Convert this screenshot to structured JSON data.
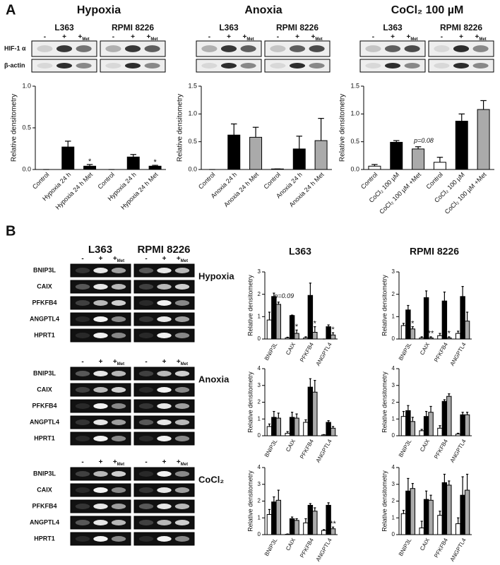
{
  "panel_labels": [
    "A",
    "B"
  ],
  "blot_a": {
    "titles": [
      "Hypoxia",
      "Anoxia",
      "CoCl₂ 100 µM"
    ],
    "cell_lines": [
      "L363",
      "RPMI 8226"
    ],
    "lanes": [
      "-",
      "+",
      "+"
    ],
    "lane_sub": "Met",
    "rows": [
      "HIF-1 α",
      "β-actin"
    ]
  },
  "blot_b": {
    "cell_lines": [
      "L363",
      "RPMI 8226"
    ],
    "lanes": [
      "-",
      "+",
      "+"
    ],
    "lane_sub": "Met",
    "genes": [
      "BNIP3L",
      "CAIX",
      "PFKFB4",
      "ANGPTL4",
      "HPRT1"
    ],
    "conditions": [
      "Hypoxia",
      "Anoxia",
      "CoCl₂"
    ]
  },
  "chart_data": [
    {
      "type": "bar",
      "ylabel": "Relative densitometry",
      "categories": [
        "Control",
        "Hypoxia 24 h",
        "Hypoxia 24 h Met",
        "Control",
        "Hypoxia 24 h",
        "Hypoxia 24 h Met"
      ],
      "values": [
        0,
        0.27,
        0.04,
        0,
        0.15,
        0.04
      ],
      "errors": [
        0,
        0.07,
        0.02,
        0,
        0.03,
        0.01
      ],
      "colors": [
        "#000000",
        "#000000",
        "#000000",
        "#000000",
        "#000000",
        "#000000"
      ],
      "annotations": [
        null,
        null,
        "*",
        null,
        null,
        "*"
      ],
      "ylim": [
        0,
        1.0
      ],
      "yticks": [
        {
          "value": 0,
          "label": "0.0"
        },
        {
          "value": 0.5,
          "label": "0.5"
        },
        {
          "value": 1.0,
          "label": "1.0"
        }
      ]
    },
    {
      "type": "bar",
      "ylabel": "Relative densitometry",
      "categories": [
        "Control",
        "Anoxia 24 h",
        "Anoxia 24 h Met",
        "Control",
        "Anoxia 24 h",
        "Anoxia 24 h Met"
      ],
      "values": [
        0,
        0.62,
        0.58,
        0.01,
        0.37,
        0.52
      ],
      "errors": [
        0,
        0.2,
        0.18,
        0,
        0.23,
        0.4
      ],
      "colors": [
        "#000000",
        "#000000",
        "#aaaaaa",
        "#000000",
        "#000000",
        "#aaaaaa"
      ],
      "ylim": [
        0,
        1.5
      ],
      "yticks": [
        {
          "value": 0,
          "label": "0.0"
        },
        {
          "value": 0.5,
          "label": "0.5"
        },
        {
          "value": 1.0,
          "label": "1.0"
        },
        {
          "value": 1.5,
          "label": "1.5"
        }
      ]
    },
    {
      "type": "bar",
      "ylabel": "Relative densitometry",
      "categories": [
        "Control",
        "CoCl₂ 100 µM",
        "CoCl₂ 100 µM +Met",
        "Control",
        "CoCl₂ 100 µM",
        "CoCl₂ 100 µM +Met"
      ],
      "values": [
        0.06,
        0.49,
        0.37,
        0.13,
        0.87,
        1.08
      ],
      "errors": [
        0.03,
        0.03,
        0.04,
        0.09,
        0.13,
        0.16
      ],
      "colors": [
        "#ffffff",
        "#000000",
        "#aaaaaa",
        "#ffffff",
        "#000000",
        "#aaaaaa"
      ],
      "annotations": [
        null,
        null,
        "p=0.08",
        null,
        null,
        null
      ],
      "ylim": [
        0,
        1.5
      ],
      "yticks": [
        {
          "value": 0,
          "label": "0.0"
        },
        {
          "value": 0.5,
          "label": "0.5"
        },
        {
          "value": 1.0,
          "label": "1.0"
        },
        {
          "value": 1.5,
          "label": "1.5"
        }
      ]
    },
    {
      "type": "grouped_bar",
      "ylabel": "Relative densitometry",
      "categories": [
        "BNIP3L",
        "CAIX",
        "PFKFB4",
        "ANGPTL4"
      ],
      "series": [
        {
          "color": "#ffffff",
          "values": [
            0.85,
            0.05,
            0.05,
            0
          ],
          "errors": [
            0.35,
            0.03,
            0.05,
            0
          ]
        },
        {
          "color": "#000000",
          "values": [
            1.9,
            1.05,
            1.95,
            0.55
          ],
          "errors": [
            0.15,
            0.02,
            0.55,
            0.08
          ]
        },
        {
          "color": "#aaaaaa",
          "values": [
            1.55,
            0.25,
            0.3,
            0.18
          ],
          "errors": [
            0.1,
            0.15,
            0.25,
            0.1
          ],
          "annotations": [
            "p=0.09",
            "*",
            "*",
            "*"
          ]
        }
      ],
      "ylim": [
        0,
        3
      ],
      "yticks": [
        0,
        1,
        2,
        3
      ]
    },
    {
      "type": "grouped_bar",
      "ylabel": "Relative densitometry",
      "categories": [
        "BNIP3L",
        "CAIX",
        "PFKFB4",
        "ANGPTL4"
      ],
      "series": [
        {
          "color": "#ffffff",
          "values": [
            0.6,
            0.05,
            0.15,
            0.25
          ],
          "errors": [
            0.1,
            0.05,
            0.1,
            0.1
          ]
        },
        {
          "color": "#000000",
          "values": [
            1.3,
            1.85,
            1.7,
            1.9
          ],
          "errors": [
            0.2,
            0.3,
            0.4,
            0.45
          ]
        },
        {
          "color": "#aaaaaa",
          "values": [
            0.45,
            0.05,
            0.05,
            0.8
          ],
          "errors": [
            0.1,
            0.05,
            0.05,
            0.4
          ],
          "annotations": [
            "*",
            "**",
            "*",
            null
          ]
        }
      ],
      "ylim": [
        0,
        3
      ],
      "yticks": [
        0,
        1,
        2,
        3
      ]
    },
    {
      "type": "grouped_bar",
      "ylabel": "Relative densitometry",
      "categories": [
        "BNIP3L",
        "CAIX",
        "PFKFB4",
        "ANGPTL4"
      ],
      "series": [
        {
          "color": "#ffffff",
          "values": [
            0.55,
            0.15,
            0.8,
            0.05
          ],
          "errors": [
            0.15,
            0.1,
            0.15,
            0.02
          ]
        },
        {
          "color": "#000000",
          "values": [
            1.1,
            1.1,
            2.9,
            0.8
          ],
          "errors": [
            0.35,
            0.3,
            0.5,
            0.1
          ]
        },
        {
          "color": "#aaaaaa",
          "values": [
            1.05,
            1.05,
            2.6,
            0.45
          ],
          "errors": [
            0.3,
            0.25,
            0.7,
            0.1
          ]
        }
      ],
      "ylim": [
        0,
        4
      ],
      "yticks": [
        0,
        1,
        2,
        3,
        4
      ]
    },
    {
      "type": "grouped_bar",
      "ylabel": "Relative densitometry",
      "categories": [
        "BNIP3L",
        "CAIX",
        "PFKFB4",
        "ANGPTL4"
      ],
      "series": [
        {
          "color": "#ffffff",
          "values": [
            1.15,
            0.3,
            0.45,
            0.1
          ],
          "errors": [
            0.3,
            0.08,
            0.15,
            0.05
          ]
        },
        {
          "color": "#000000",
          "values": [
            1.5,
            1.15,
            2.05,
            1.25
          ],
          "errors": [
            0.3,
            0.3,
            0.1,
            0.15
          ]
        },
        {
          "color": "#aaaaaa",
          "values": [
            0.85,
            1.4,
            2.35,
            1.25
          ],
          "errors": [
            0.25,
            0.35,
            0.15,
            0.15
          ]
        }
      ],
      "ylim": [
        0,
        4
      ],
      "yticks": [
        0,
        1,
        2,
        3,
        4
      ]
    },
    {
      "type": "grouped_bar",
      "ylabel": "Relative densitometry",
      "categories": [
        "BNIP3L",
        "CAIX",
        "PFKFB4",
        "ANGPTL4"
      ],
      "series": [
        {
          "color": "#ffffff",
          "values": [
            1.2,
            0.02,
            0.7,
            0.25
          ],
          "errors": [
            0.3,
            0.02,
            0.25,
            0.05
          ]
        },
        {
          "color": "#000000",
          "values": [
            1.95,
            0.95,
            1.75,
            1.75
          ],
          "errors": [
            0.3,
            0.1,
            0.1,
            0.15
          ]
        },
        {
          "color": "#aaaaaa",
          "values": [
            2.05,
            0.85,
            1.4,
            0.35
          ],
          "errors": [
            0.6,
            0.1,
            0.2,
            0.1
          ],
          "annotations": [
            null,
            null,
            null,
            "**"
          ]
        }
      ],
      "ylim": [
        0,
        4
      ],
      "yticks": [
        0,
        1,
        2,
        3,
        4
      ]
    },
    {
      "type": "grouped_bar",
      "ylabel": "Relative densitometry",
      "categories": [
        "BNIP3L",
        "CAIX",
        "PFKFB4",
        "ANGPTL4"
      ],
      "series": [
        {
          "color": "#ffffff",
          "values": [
            1.25,
            0.4,
            1.15,
            0.65
          ],
          "errors": [
            0.2,
            0.4,
            0.25,
            0.35
          ]
        },
        {
          "color": "#000000",
          "values": [
            2.6,
            2.1,
            3.1,
            2.35
          ],
          "errors": [
            0.75,
            0.5,
            0.5,
            1.1
          ]
        },
        {
          "color": "#aaaaaa",
          "values": [
            2.75,
            2.05,
            2.95,
            2.65
          ],
          "errors": [
            0.3,
            0.3,
            0.25,
            0.95
          ]
        }
      ],
      "ylim": [
        0,
        4
      ],
      "yticks": [
        0,
        1,
        2,
        3,
        4
      ]
    }
  ]
}
